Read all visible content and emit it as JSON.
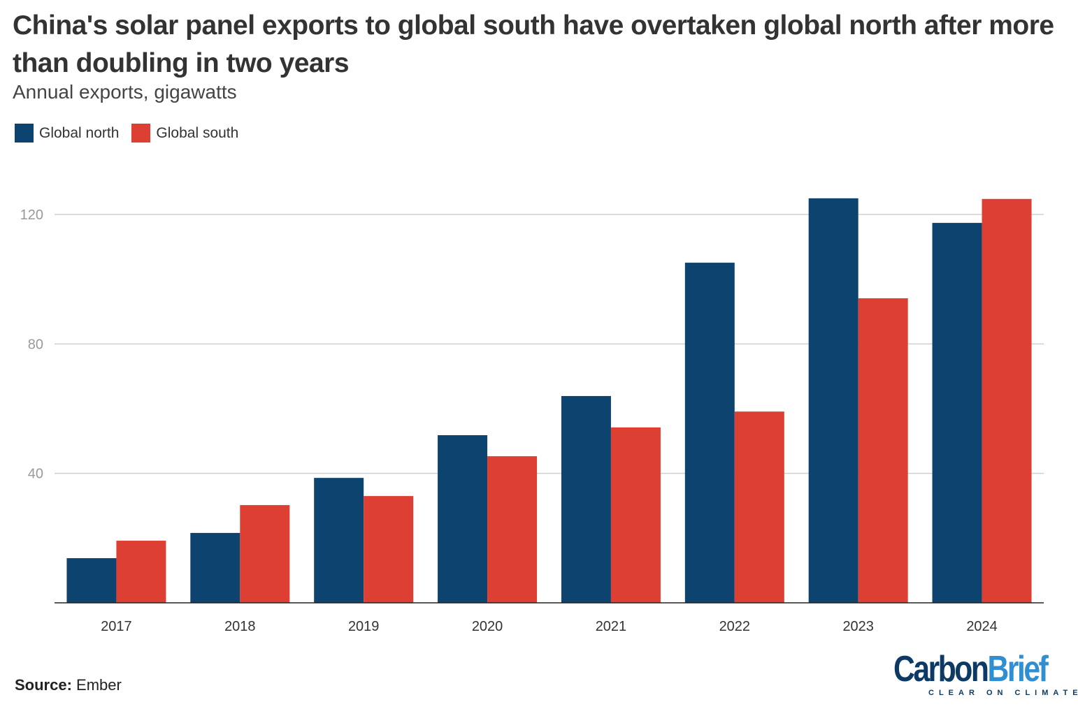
{
  "title": "China's solar panel exports to global south have overtaken global north after more than doubling in two years",
  "subtitle": "Annual exports, gigawatts",
  "source_label": "Source:",
  "source_value": "Ember",
  "logo": {
    "part1": "Carbon",
    "part2": "Brief",
    "tagline": "CLEAR ON CLIMATE"
  },
  "colors": {
    "north": "#0d446f",
    "south": "#de3f33",
    "logo_dark": "#0d3a64",
    "logo_light": "#2f8fd2"
  },
  "chart_data": {
    "type": "bar",
    "title": "China's solar panel exports to global south have overtaken global north after more than doubling in two years",
    "subtitle": "Annual exports, gigawatts",
    "categories": [
      "2017",
      "2018",
      "2019",
      "2020",
      "2021",
      "2022",
      "2023",
      "2024"
    ],
    "series": [
      {
        "name": "Global north",
        "color": "#0d446f",
        "values": [
          13.8,
          21.6,
          38.6,
          51.8,
          63.9,
          105.1,
          125.0,
          117.4
        ]
      },
      {
        "name": "Global south",
        "color": "#de3f33",
        "values": [
          19.2,
          30.2,
          33.0,
          45.3,
          54.2,
          59.1,
          94.1,
          124.8
        ]
      }
    ],
    "yticks": [
      40,
      80,
      120
    ],
    "ylim": [
      0,
      130
    ],
    "grid": true,
    "legend": "top-left"
  }
}
